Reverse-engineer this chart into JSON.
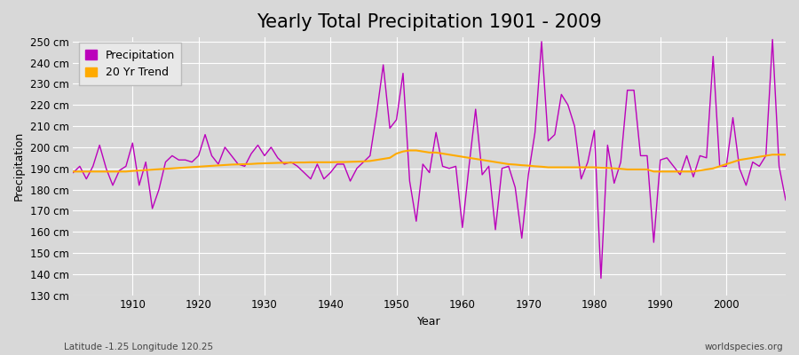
{
  "title": "Yearly Total Precipitation 1901 - 2009",
  "xlabel": "Year",
  "ylabel": "Precipitation",
  "subtitle_left": "Latitude -1.25 Longitude 120.25",
  "subtitle_right": "worldspecies.org",
  "years": [
    1901,
    1902,
    1903,
    1904,
    1905,
    1906,
    1907,
    1908,
    1909,
    1910,
    1911,
    1912,
    1913,
    1914,
    1915,
    1916,
    1917,
    1918,
    1919,
    1920,
    1921,
    1922,
    1923,
    1924,
    1925,
    1926,
    1927,
    1928,
    1929,
    1930,
    1931,
    1932,
    1933,
    1934,
    1935,
    1936,
    1937,
    1938,
    1939,
    1940,
    1941,
    1942,
    1943,
    1944,
    1945,
    1946,
    1947,
    1948,
    1949,
    1950,
    1951,
    1952,
    1953,
    1954,
    1955,
    1956,
    1957,
    1958,
    1959,
    1960,
    1961,
    1962,
    1963,
    1964,
    1965,
    1966,
    1967,
    1968,
    1969,
    1970,
    1971,
    1972,
    1973,
    1974,
    1975,
    1976,
    1977,
    1978,
    1979,
    1980,
    1981,
    1982,
    1983,
    1984,
    1985,
    1986,
    1987,
    1988,
    1989,
    1990,
    1991,
    1992,
    1993,
    1994,
    1995,
    1996,
    1997,
    1998,
    1999,
    2000,
    2001,
    2002,
    2003,
    2004,
    2005,
    2006,
    2007,
    2008,
    2009
  ],
  "precip": [
    188,
    191,
    185,
    191,
    201,
    190,
    182,
    189,
    191,
    202,
    182,
    193,
    171,
    180,
    193,
    196,
    194,
    194,
    193,
    196,
    206,
    196,
    192,
    200,
    196,
    192,
    191,
    197,
    201,
    196,
    200,
    195,
    192,
    193,
    191,
    188,
    185,
    192,
    185,
    188,
    192,
    192,
    184,
    190,
    193,
    196,
    216,
    239,
    209,
    213,
    235,
    184,
    165,
    192,
    188,
    207,
    191,
    190,
    191,
    162,
    191,
    218,
    187,
    191,
    161,
    190,
    191,
    181,
    157,
    187,
    207,
    250,
    203,
    206,
    225,
    220,
    210,
    185,
    193,
    208,
    138,
    201,
    183,
    193,
    227,
    227,
    196,
    196,
    155,
    194,
    195,
    191,
    187,
    196,
    186,
    196,
    195,
    243,
    191,
    191,
    214,
    190,
    182,
    193,
    191,
    196,
    251,
    191,
    175
  ],
  "trend": [
    188.5,
    188.5,
    188.5,
    188.5,
    188.5,
    188.5,
    188.5,
    188.5,
    188.5,
    188.8,
    189.0,
    189.2,
    189.4,
    189.6,
    189.8,
    190.0,
    190.2,
    190.4,
    190.6,
    190.8,
    191.0,
    191.2,
    191.4,
    191.6,
    191.8,
    191.9,
    192.0,
    192.1,
    192.3,
    192.4,
    192.5,
    192.6,
    192.7,
    192.7,
    192.8,
    192.8,
    192.9,
    192.9,
    192.9,
    192.9,
    193.0,
    193.0,
    193.1,
    193.2,
    193.3,
    193.5,
    194.0,
    194.5,
    195.0,
    197.0,
    198.0,
    198.5,
    198.5,
    198.0,
    197.5,
    197.5,
    197.0,
    196.5,
    196.0,
    195.5,
    195.0,
    194.5,
    194.0,
    193.5,
    193.0,
    192.5,
    192.0,
    191.8,
    191.5,
    191.3,
    191.0,
    190.8,
    190.5,
    190.5,
    190.5,
    190.5,
    190.5,
    190.5,
    190.5,
    190.5,
    190.3,
    190.2,
    190.0,
    189.8,
    189.5,
    189.5,
    189.5,
    189.5,
    188.5,
    188.5,
    188.5,
    188.5,
    188.5,
    188.5,
    188.5,
    189.0,
    189.5,
    190.0,
    191.0,
    192.0,
    193.0,
    194.0,
    194.5,
    195.0,
    195.5,
    196.0,
    196.5,
    196.5,
    196.5
  ],
  "precip_color": "#bb00bb",
  "trend_color": "#ffaa00",
  "bg_color": "#d8d8d8",
  "plot_bg_color": "#d8d8d8",
  "grid_color": "#ffffff",
  "ylim": [
    130,
    252
  ],
  "xlim": [
    1901,
    2009
  ],
  "ytick_step": 10,
  "title_fontsize": 15,
  "label_fontsize": 9,
  "tick_fontsize": 8.5
}
